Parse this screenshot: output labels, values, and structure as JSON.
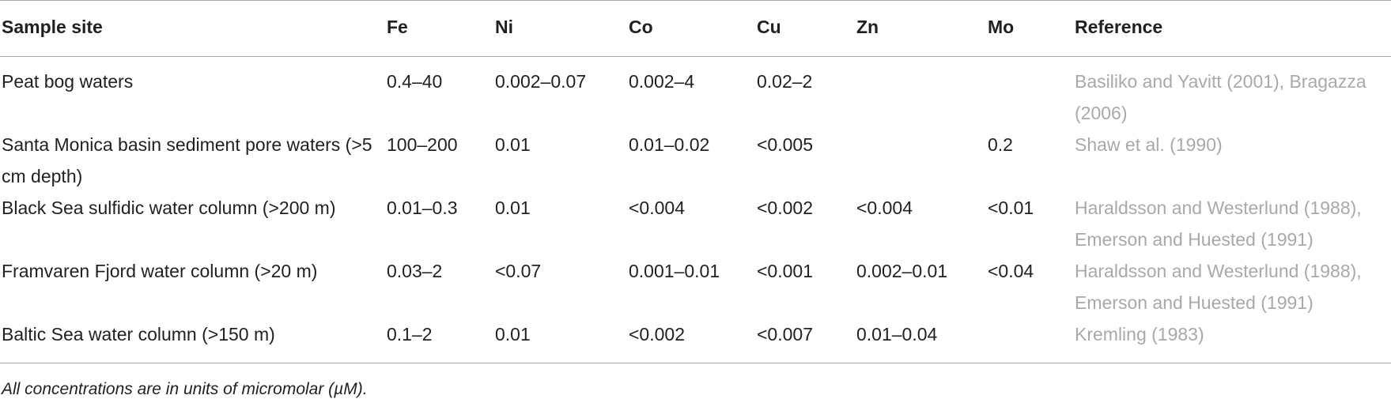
{
  "table": {
    "header": [
      "Sample site",
      "Fe",
      "Ni",
      "Co",
      "Cu",
      "Zn",
      "Mo",
      "Reference"
    ],
    "rows": [
      [
        "Peat bog waters",
        "0.4–40",
        "0.002–0.07",
        "0.002–4",
        "0.02–2",
        null,
        null,
        "Basiliko and Yavitt (2001), Bragazza (2006)"
      ],
      [
        "Santa Monica basin sediment pore waters (>5 cm depth)",
        "100–200",
        "0.01",
        "0.01–0.02",
        "<0.005",
        null,
        "0.2",
        "Shaw et al. (1990)"
      ],
      [
        "Black Sea sulfidic water column (>200 m)",
        "0.01–0.3",
        "0.01",
        "<0.004",
        "<0.002",
        "<0.004",
        "<0.01",
        "Haraldsson and Westerlund (1988), Emerson and Huested (1991)"
      ],
      [
        "Framvaren Fjord water column (>20 m)",
        "0.03–2",
        "<0.07",
        "0.001–0.01",
        "<0.001",
        "0.002–0.01",
        "<0.04",
        "Haraldsson and Westerlund (1988), Emerson and Huested (1991)"
      ],
      [
        "Baltic Sea water column (>150 m)",
        "0.1–2",
        "0.01",
        "<0.002",
        "<0.007",
        "0.01–0.04",
        null,
        "Kremling (1983)"
      ]
    ],
    "footnote": "All concentrations are in units of micromolar (µM)."
  }
}
